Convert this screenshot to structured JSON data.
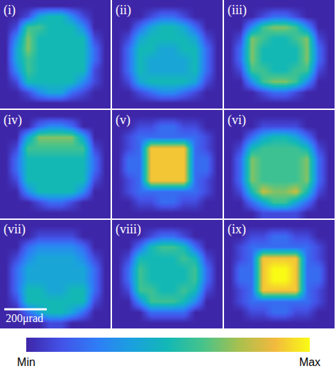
{
  "chart_data": {
    "type": "heatmap",
    "tick_labels": false,
    "xlim": [
      -260,
      260
    ],
    "ylim": [
      -260,
      260
    ],
    "x": [
      -234,
      -182,
      -130,
      -78,
      -26,
      26,
      78,
      130,
      182,
      234
    ],
    "y": [
      234,
      182,
      130,
      78,
      26,
      -26,
      -78,
      -130,
      -182,
      -234
    ],
    "colorbar": {
      "range": [
        0,
        10
      ],
      "ticks": [
        {
          "value": 0,
          "label": "Min"
        },
        {
          "value": 10,
          "label": "Max"
        }
      ]
    },
    "panels": [
      {
        "label": "(i)",
        "z": [
          [
            0,
            0,
            0,
            0,
            0,
            0,
            0,
            0,
            0,
            0
          ],
          [
            0,
            0,
            1,
            4,
            5,
            5,
            3,
            1,
            0,
            0
          ],
          [
            0,
            1,
            6,
            6,
            5,
            5,
            5,
            3,
            0,
            0
          ],
          [
            0,
            3,
            7,
            5,
            5,
            5,
            5,
            5,
            1,
            0
          ],
          [
            0,
            4,
            7,
            5,
            5,
            5,
            5,
            5,
            2,
            0
          ],
          [
            0,
            4,
            6,
            5,
            5,
            5,
            5,
            5,
            2,
            0
          ],
          [
            0,
            3,
            6,
            5,
            5,
            5,
            5,
            5,
            1,
            0
          ],
          [
            0,
            1,
            5,
            5,
            5,
            5,
            5,
            3,
            1,
            0
          ],
          [
            0,
            0,
            1,
            3,
            4,
            4,
            2,
            1,
            0,
            0
          ],
          [
            0,
            0,
            0,
            0,
            0,
            0,
            0,
            0,
            0,
            0
          ]
        ]
      },
      {
        "label": "(ii)",
        "z": [
          [
            0,
            0,
            0,
            0,
            0,
            0,
            0,
            0,
            0,
            0
          ],
          [
            0,
            0,
            0,
            1,
            2,
            2,
            1,
            0,
            0,
            0
          ],
          [
            0,
            0,
            2,
            4,
            5,
            5,
            4,
            2,
            0,
            0
          ],
          [
            0,
            1,
            4,
            5,
            5,
            5,
            5,
            4,
            1,
            0
          ],
          [
            0,
            2,
            5,
            5,
            4,
            4,
            5,
            5,
            2,
            0
          ],
          [
            0,
            2,
            5,
            4,
            4,
            4,
            4,
            5,
            2,
            0
          ],
          [
            0,
            2,
            5,
            4,
            4,
            4,
            4,
            5,
            2,
            0
          ],
          [
            0,
            1,
            4,
            5,
            5,
            5,
            5,
            4,
            1,
            0
          ],
          [
            0,
            0,
            1,
            2,
            3,
            3,
            2,
            1,
            0,
            0
          ],
          [
            0,
            0,
            0,
            0,
            0,
            0,
            0,
            0,
            0,
            0
          ]
        ]
      },
      {
        "label": "(iii)",
        "z": [
          [
            0,
            0,
            0,
            0,
            0,
            0,
            0,
            0,
            0,
            0
          ],
          [
            0,
            0,
            0,
            1,
            2,
            2,
            1,
            0,
            0,
            0
          ],
          [
            0,
            0,
            3,
            6,
            7,
            7,
            6,
            3,
            0,
            0
          ],
          [
            0,
            1,
            7,
            6,
            5,
            5,
            6,
            7,
            1,
            0
          ],
          [
            0,
            2,
            7,
            5,
            5,
            5,
            5,
            7,
            2,
            0
          ],
          [
            0,
            2,
            7,
            5,
            5,
            5,
            5,
            7,
            2,
            0
          ],
          [
            0,
            1,
            6,
            6,
            5,
            5,
            6,
            6,
            1,
            0
          ],
          [
            0,
            0,
            3,
            6,
            7,
            7,
            6,
            3,
            0,
            0
          ],
          [
            0,
            0,
            0,
            1,
            2,
            2,
            1,
            0,
            0,
            0
          ],
          [
            0,
            0,
            0,
            0,
            0,
            0,
            0,
            0,
            0,
            0
          ]
        ]
      },
      {
        "label": "(iv)",
        "z": [
          [
            0,
            0,
            0,
            0,
            0,
            0,
            0,
            0,
            0,
            0
          ],
          [
            0,
            0,
            0,
            2,
            3,
            3,
            2,
            0,
            0,
            0
          ],
          [
            0,
            0,
            4,
            7,
            7,
            7,
            7,
            4,
            0,
            0
          ],
          [
            0,
            1,
            6,
            6,
            6,
            6,
            6,
            6,
            1,
            0
          ],
          [
            0,
            2,
            5,
            5,
            5,
            5,
            5,
            5,
            2,
            0
          ],
          [
            0,
            2,
            5,
            5,
            5,
            5,
            5,
            5,
            2,
            0
          ],
          [
            0,
            1,
            5,
            5,
            5,
            5,
            5,
            5,
            1,
            0
          ],
          [
            0,
            0,
            3,
            5,
            5,
            5,
            5,
            3,
            0,
            0
          ],
          [
            0,
            0,
            0,
            1,
            2,
            2,
            1,
            0,
            0,
            0
          ],
          [
            0,
            0,
            0,
            0,
            0,
            0,
            0,
            0,
            0,
            0
          ]
        ]
      },
      {
        "label": "(v)",
        "z": [
          [
            0,
            0,
            0,
            0,
            0,
            0,
            0,
            0,
            0,
            0
          ],
          [
            0,
            0,
            1,
            1,
            2,
            2,
            1,
            1,
            0,
            0
          ],
          [
            0,
            1,
            2,
            2,
            2,
            2,
            2,
            2,
            1,
            0
          ],
          [
            0,
            1,
            2,
            9,
            9,
            9,
            9,
            2,
            1,
            0
          ],
          [
            0,
            2,
            2,
            9,
            9,
            9,
            9,
            2,
            2,
            0
          ],
          [
            0,
            2,
            2,
            9,
            9,
            9,
            9,
            2,
            2,
            0
          ],
          [
            0,
            1,
            2,
            9,
            9,
            9,
            9,
            2,
            1,
            0
          ],
          [
            0,
            1,
            2,
            2,
            2,
            2,
            2,
            2,
            1,
            0
          ],
          [
            0,
            0,
            1,
            1,
            2,
            2,
            1,
            1,
            0,
            0
          ],
          [
            0,
            0,
            0,
            0,
            0,
            0,
            0,
            0,
            0,
            0
          ]
        ]
      },
      {
        "label": "(vi)",
        "z": [
          [
            0,
            0,
            0,
            0,
            0,
            0,
            0,
            0,
            0,
            0
          ],
          [
            0,
            0,
            0,
            1,
            1,
            1,
            1,
            0,
            0,
            0
          ],
          [
            0,
            0,
            2,
            4,
            5,
            5,
            4,
            2,
            0,
            0
          ],
          [
            0,
            1,
            5,
            6,
            6,
            6,
            6,
            5,
            1,
            0
          ],
          [
            0,
            2,
            7,
            6,
            6,
            6,
            6,
            7,
            2,
            0
          ],
          [
            0,
            2,
            7,
            6,
            6,
            6,
            6,
            7,
            2,
            0
          ],
          [
            0,
            2,
            7,
            6,
            6,
            6,
            6,
            7,
            2,
            0
          ],
          [
            0,
            1,
            5,
            8,
            7,
            7,
            8,
            5,
            1,
            0
          ],
          [
            0,
            0,
            2,
            4,
            6,
            6,
            4,
            2,
            0,
            0
          ],
          [
            0,
            0,
            0,
            1,
            1,
            1,
            1,
            0,
            0,
            0
          ]
        ]
      },
      {
        "label": "(vii)",
        "scale_bar": {
          "length": 200,
          "label": "200μrad"
        },
        "z": [
          [
            0,
            0,
            0,
            0,
            0,
            0,
            0,
            0,
            0,
            0
          ],
          [
            0,
            0,
            0,
            1,
            1,
            1,
            1,
            0,
            0,
            0
          ],
          [
            0,
            0,
            2,
            3,
            3,
            3,
            3,
            2,
            0,
            0
          ],
          [
            0,
            1,
            3,
            4,
            4,
            4,
            4,
            3,
            1,
            0
          ],
          [
            0,
            2,
            4,
            4,
            4,
            4,
            4,
            4,
            2,
            0
          ],
          [
            0,
            2,
            4,
            4,
            4,
            4,
            4,
            4,
            2,
            0
          ],
          [
            0,
            2,
            5,
            5,
            4,
            4,
            5,
            5,
            2,
            0
          ],
          [
            0,
            1,
            5,
            5,
            5,
            5,
            5,
            5,
            1,
            0
          ],
          [
            0,
            0,
            2,
            4,
            5,
            5,
            4,
            2,
            0,
            0
          ],
          [
            0,
            0,
            0,
            0,
            1,
            1,
            0,
            0,
            0,
            0
          ]
        ]
      },
      {
        "label": "(viii)",
        "z": [
          [
            0,
            0,
            0,
            0,
            0,
            0,
            0,
            0,
            0,
            0
          ],
          [
            0,
            0,
            0,
            1,
            2,
            2,
            1,
            0,
            0,
            0
          ],
          [
            0,
            0,
            2,
            5,
            6,
            6,
            5,
            2,
            0,
            0
          ],
          [
            0,
            1,
            5,
            5,
            5,
            5,
            6,
            5,
            1,
            0
          ],
          [
            0,
            2,
            6,
            5,
            5,
            5,
            5,
            6,
            2,
            0
          ],
          [
            0,
            2,
            6,
            5,
            5,
            5,
            5,
            6,
            2,
            0
          ],
          [
            0,
            1,
            6,
            6,
            5,
            5,
            6,
            5,
            1,
            0
          ],
          [
            0,
            0,
            3,
            6,
            6,
            6,
            5,
            3,
            0,
            0
          ],
          [
            0,
            0,
            0,
            2,
            2,
            2,
            2,
            0,
            0,
            0
          ],
          [
            0,
            0,
            0,
            0,
            0,
            0,
            0,
            0,
            0,
            0
          ]
        ]
      },
      {
        "label": "(ix)",
        "z": [
          [
            0,
            0,
            0,
            0,
            0,
            0,
            0,
            0,
            0,
            0
          ],
          [
            0,
            0,
            1,
            1,
            2,
            2,
            1,
            1,
            0,
            0
          ],
          [
            0,
            1,
            2,
            2,
            2,
            2,
            2,
            2,
            1,
            0
          ],
          [
            0,
            1,
            2,
            9,
            9,
            9,
            9,
            2,
            1,
            0
          ],
          [
            0,
            2,
            2,
            9,
            10,
            10,
            9,
            2,
            2,
            0
          ],
          [
            0,
            2,
            2,
            9,
            10,
            10,
            9,
            2,
            2,
            0
          ],
          [
            0,
            1,
            2,
            9,
            9,
            9,
            9,
            2,
            1,
            0
          ],
          [
            0,
            1,
            2,
            2,
            2,
            2,
            2,
            2,
            1,
            0
          ],
          [
            0,
            0,
            1,
            1,
            2,
            2,
            1,
            1,
            0,
            0
          ],
          [
            0,
            0,
            0,
            0,
            0,
            0,
            0,
            0,
            0,
            0
          ]
        ]
      }
    ]
  }
}
